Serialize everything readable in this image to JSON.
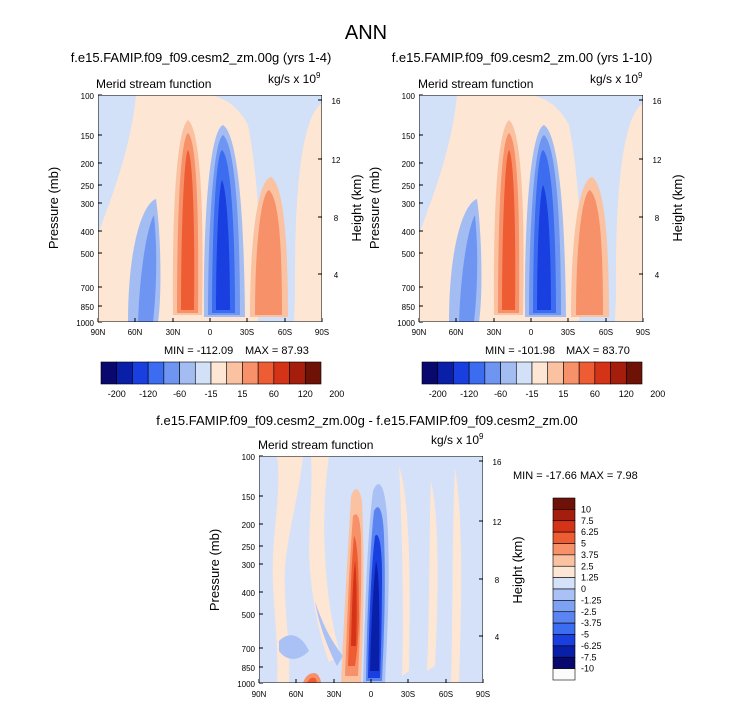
{
  "page_title": "ANN",
  "colors": {
    "main_bar": [
      "#08086e",
      "#0a1fa8",
      "#1a3fe0",
      "#3c6df0",
      "#6f95f2",
      "#a3bdf2",
      "#d2e0f8",
      "#fde6d4",
      "#fbc2a2",
      "#f7916a",
      "#ee5c33",
      "#d43317",
      "#a51d0d",
      "#6e1208"
    ],
    "diff_bar": [
      "#fbfbfb",
      "#08086e",
      "#0a1fa8",
      "#1a3fe0",
      "#3c6df0",
      "#5a84f1",
      "#7ea2f3",
      "#a9c1f5",
      "#d4e1f9",
      "#fde6d4",
      "#fbc2a2",
      "#f7916a",
      "#ee5c33",
      "#d43317",
      "#a51d0d",
      "#6e1208"
    ]
  },
  "chart_data": [
    {
      "type": "heatmap",
      "title": "f.e15.FAMIP.f09_f09.cesm2_zm.00g (yrs 1-4)",
      "left_label": "Merid stream function",
      "units_label": "kg/s x 10",
      "units_exp": "9",
      "ylabel": "Pressure (mb)",
      "ylabel_right": "Height (km)",
      "yticks": [
        "100",
        "150",
        "200",
        "250",
        "300",
        "400",
        "500",
        "700",
        "850",
        "1000"
      ],
      "yticks_right": [
        "16",
        "12",
        "8",
        "4"
      ],
      "xticks": [
        "90N",
        "60N",
        "30N",
        "0",
        "30S",
        "60S",
        "90S"
      ],
      "min_text": "MIN = -112.09",
      "max_text": "MAX =  87.93",
      "min": -112.09,
      "max": 87.93,
      "colorbar_labels": [
        "-200",
        "-120",
        "-60",
        "-15",
        "15",
        "60",
        "120",
        "200"
      ]
    },
    {
      "type": "heatmap",
      "title": "f.e15.FAMIP.f09_f09.cesm2_zm.00 (yrs 1-10)",
      "left_label": "Merid stream function",
      "units_label": "kg/s x 10",
      "units_exp": "9",
      "ylabel": "Pressure (mb)",
      "ylabel_right": "Height (km)",
      "yticks": [
        "100",
        "150",
        "200",
        "250",
        "300",
        "400",
        "500",
        "700",
        "850",
        "1000"
      ],
      "yticks_right": [
        "16",
        "12",
        "8",
        "4"
      ],
      "xticks": [
        "90N",
        "60N",
        "30N",
        "0",
        "30S",
        "60S",
        "90S"
      ],
      "min_text": "MIN = -101.98",
      "max_text": "MAX =  83.70",
      "min": -101.98,
      "max": 83.7,
      "colorbar_labels": [
        "-200",
        "-120",
        "-60",
        "-15",
        "15",
        "60",
        "120",
        "200"
      ]
    },
    {
      "type": "heatmap",
      "title": "f.e15.FAMIP.f09_f09.cesm2_zm.00g - f.e15.FAMIP.f09_f09.cesm2_zm.00",
      "left_label": "Merid stream function",
      "units_label": "kg/s x 10",
      "units_exp": "9",
      "ylabel": "Pressure (mb)",
      "ylabel_right": "Height (km)",
      "yticks": [
        "100",
        "150",
        "200",
        "250",
        "300",
        "400",
        "500",
        "700",
        "850",
        "1000"
      ],
      "yticks_right": [
        "16",
        "12",
        "8",
        "4"
      ],
      "xticks": [
        "90N",
        "60N",
        "30N",
        "0",
        "30S",
        "60S",
        "90S"
      ],
      "minmax_text": "MIN = -17.66   MAX =   7.98",
      "min": -17.66,
      "max": 7.98,
      "colorbar_labels": [
        "10",
        "7.5",
        "6.25",
        "5",
        "3.75",
        "2.5",
        "1.25",
        "0",
        "-1.25",
        "-2.5",
        "-3.75",
        "-5",
        "-6.25",
        "-7.5",
        "-10"
      ]
    }
  ]
}
